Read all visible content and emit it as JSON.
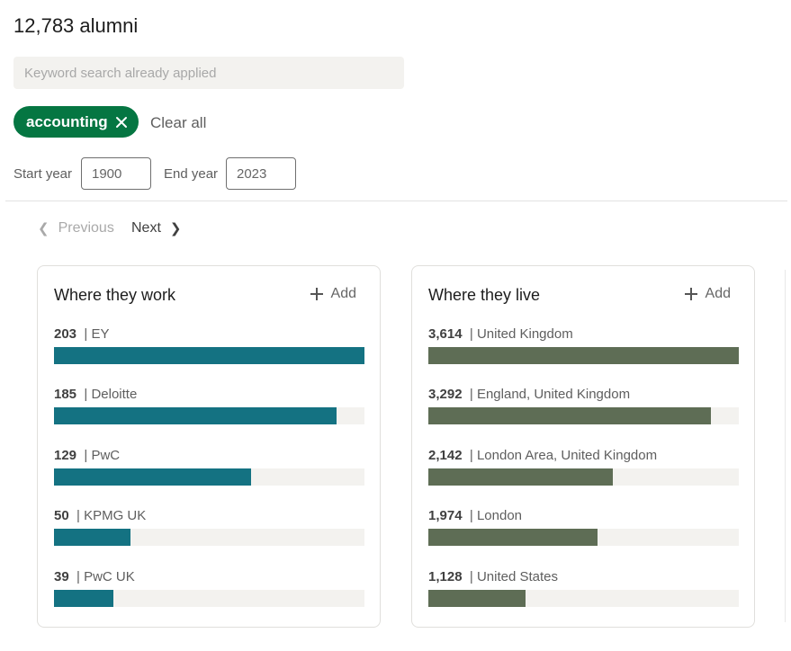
{
  "header": {
    "alumni_count": "12,783 alumni"
  },
  "search": {
    "placeholder": "Keyword search already applied"
  },
  "filters": {
    "active_pill": "accounting",
    "clear_all": "Clear all",
    "start_year_label": "Start year",
    "start_year_value": "1900",
    "end_year_label": "End year",
    "end_year_value": "2023"
  },
  "pagination": {
    "previous": "Previous",
    "next": "Next"
  },
  "cards": [
    {
      "title": "Where they work",
      "add_label": "Add",
      "items": [
        {
          "count": "203",
          "label": "| EY",
          "fraction": 1.0
        },
        {
          "count": "185",
          "label": "| Deloitte",
          "fraction": 0.911
        },
        {
          "count": "129",
          "label": "| PwC",
          "fraction": 0.635
        },
        {
          "count": "50",
          "label": "| KPMG UK",
          "fraction": 0.246
        },
        {
          "count": "39",
          "label": "| PwC UK",
          "fraction": 0.192
        }
      ]
    },
    {
      "title": "Where they live",
      "add_label": "Add",
      "items": [
        {
          "count": "3,614",
          "label": "| United Kingdom",
          "fraction": 1.0
        },
        {
          "count": "3,292",
          "label": "| England, United Kingdom",
          "fraction": 0.911
        },
        {
          "count": "2,142",
          "label": "| London Area, United Kingdom",
          "fraction": 0.593
        },
        {
          "count": "1,974",
          "label": "| London",
          "fraction": 0.546
        },
        {
          "count": "1,128",
          "label": "| United States",
          "fraction": 0.312
        }
      ]
    }
  ],
  "colors": {
    "pill": "#057642",
    "work_bar": "#147282",
    "live_bar": "#5e6d55",
    "track": "#f3f2ef"
  }
}
